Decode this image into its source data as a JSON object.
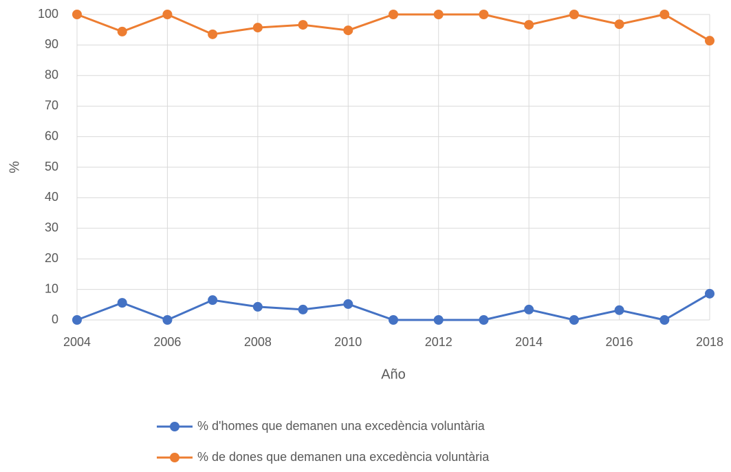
{
  "chart_data": {
    "type": "line",
    "x_label": "Año",
    "y_label": "%",
    "x": [
      2004,
      2005,
      2006,
      2007,
      2008,
      2009,
      2010,
      2011,
      2012,
      2013,
      2014,
      2015,
      2016,
      2017,
      2018
    ],
    "series": [
      {
        "name": "% d'homes que demanen una excedència voluntària",
        "color": "#4472c4",
        "values": [
          0,
          5.6,
          0,
          6.5,
          4.3,
          3.4,
          5.2,
          0,
          0,
          0,
          3.4,
          0,
          3.2,
          0,
          8.6
        ]
      },
      {
        "name": "% de dones que demanen una excedència voluntària",
        "color": "#ed7d31",
        "values": [
          100,
          94.4,
          100,
          93.5,
          95.7,
          96.6,
          94.8,
          100,
          100,
          100,
          96.6,
          100,
          96.8,
          100,
          91.4
        ]
      }
    ],
    "xlim": [
      2004,
      2018
    ],
    "xticks": [
      2004,
      2006,
      2008,
      2010,
      2012,
      2014,
      2016,
      2018
    ],
    "ylim": [
      0,
      100
    ],
    "yticks": [
      0,
      10,
      20,
      30,
      40,
      50,
      60,
      70,
      80,
      90,
      100
    ],
    "grid": true,
    "legend": "bottom"
  }
}
